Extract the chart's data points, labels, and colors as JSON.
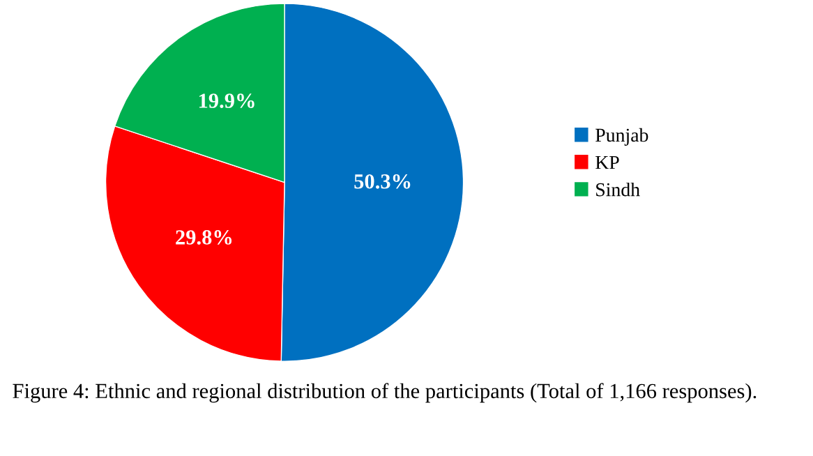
{
  "chart_data": {
    "type": "pie",
    "categories": [
      "Punjab",
      "KP",
      "Sindh"
    ],
    "values": [
      50.3,
      29.8,
      19.9
    ],
    "colors": [
      "#0070c0",
      "#ff0000",
      "#00b050"
    ],
    "value_labels": [
      "50.3%",
      "29.8%",
      "19.9%"
    ],
    "legend": "right",
    "annotations": [
      "Figure 4: Ethnic and regional distribution of the participants (Total of 1,166 responses)."
    ]
  }
}
